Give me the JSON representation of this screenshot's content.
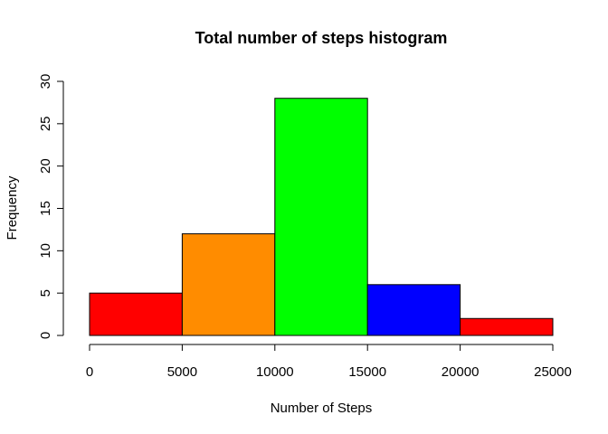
{
  "chart_data": {
    "type": "bar",
    "subtype": "histogram",
    "title": "Total number of steps histogram",
    "xlabel": "Number of Steps",
    "ylabel": "Frequency",
    "bins": [
      {
        "from": 0,
        "to": 5000,
        "count": 5,
        "color": "#ff0000"
      },
      {
        "from": 5000,
        "to": 10000,
        "count": 12,
        "color": "#ff8c00"
      },
      {
        "from": 10000,
        "to": 15000,
        "count": 28,
        "color": "#00ff00"
      },
      {
        "from": 15000,
        "to": 20000,
        "count": 6,
        "color": "#0000ff"
      },
      {
        "from": 20000,
        "to": 25000,
        "count": 2,
        "color": "#ff0000"
      }
    ],
    "xlim": [
      0,
      25000
    ],
    "ylim": [
      0,
      30
    ],
    "xticks": [
      0,
      5000,
      10000,
      15000,
      20000,
      25000
    ],
    "xtick_labels": [
      "0",
      "5000",
      "10000",
      "15000",
      "20000",
      "25000"
    ],
    "yticks": [
      0,
      5,
      10,
      15,
      20,
      25,
      30
    ],
    "ytick_labels": [
      "0",
      "5",
      "10",
      "15",
      "20",
      "25",
      "30"
    ],
    "grid": false,
    "legend": "none"
  }
}
